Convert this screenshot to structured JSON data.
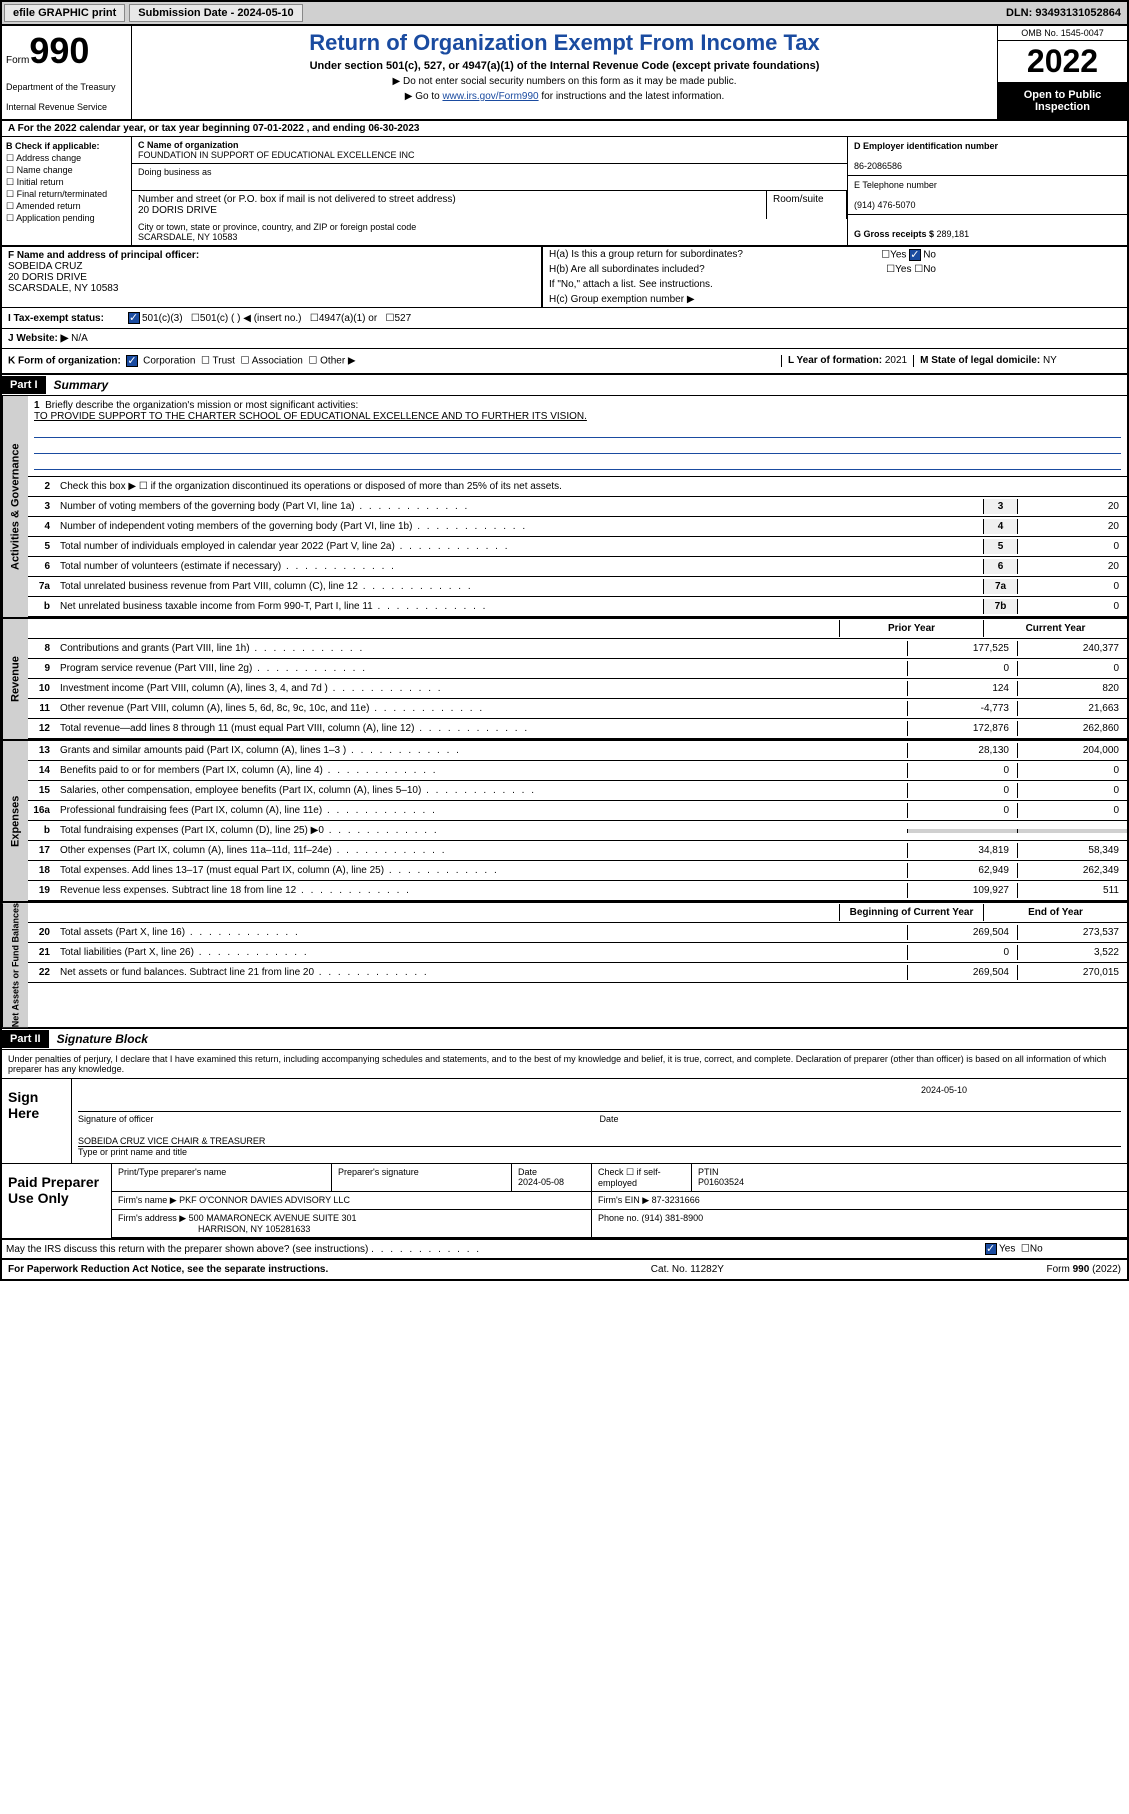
{
  "topbar": {
    "efile": "efile GRAPHIC print",
    "sub_lbl": "Submission Date - 2024-05-10",
    "dln": "DLN: 93493131052864"
  },
  "header": {
    "form_lbl": "Form",
    "form_num": "990",
    "dept": "Department of the Treasury",
    "irs": "Internal Revenue Service",
    "title": "Return of Organization Exempt From Income Tax",
    "sub": "Under section 501(c), 527, or 4947(a)(1) of the Internal Revenue Code (except private foundations)",
    "note1": "▶ Do not enter social security numbers on this form as it may be made public.",
    "note2_a": "▶ Go to ",
    "note2_link": "www.irs.gov/Form990",
    "note2_b": " for instructions and the latest information.",
    "omb": "OMB No. 1545-0047",
    "year": "2022",
    "insp": "Open to Public Inspection"
  },
  "row_a": "A For the 2022 calendar year, or tax year beginning 07-01-2022   , and ending 06-30-2023",
  "col_b": {
    "hd": "B Check if applicable:",
    "items": [
      "Address change",
      "Name change",
      "Initial return",
      "Final return/terminated",
      "Amended return",
      "Application pending"
    ]
  },
  "col_c": {
    "name_lbl": "C Name of organization",
    "name": "FOUNDATION IN SUPPORT OF EDUCATIONAL EXCELLENCE INC",
    "dba_lbl": "Doing business as",
    "addr_lbl": "Number and street (or P.O. box if mail is not delivered to street address)",
    "room_lbl": "Room/suite",
    "addr": "20 DORIS DRIVE",
    "city_lbl": "City or town, state or province, country, and ZIP or foreign postal code",
    "city": "SCARSDALE, NY  10583"
  },
  "col_d": {
    "ein_lbl": "D Employer identification number",
    "ein": "86-2086586",
    "tel_lbl": "E Telephone number",
    "tel": "(914) 476-5070",
    "gross_lbl": "G Gross receipts $ ",
    "gross": "289,181"
  },
  "row_f": {
    "lbl": "F Name and address of principal officer:",
    "name": "SOBEIDA CRUZ",
    "addr1": "20 DORIS DRIVE",
    "addr2": "SCARSDALE, NY  10583"
  },
  "col_h": {
    "a": "H(a)  Is this a group return for subordinates?",
    "b": "H(b)  Are all subordinates included?",
    "b2": "If \"No,\" attach a list. See instructions.",
    "c": "H(c)  Group exemption number ▶",
    "yes": "Yes",
    "no": "No"
  },
  "row_i": {
    "lbl": "I    Tax-exempt status:",
    "o1": "501(c)(3)",
    "o2": "501(c) (  ) ◀ (insert no.)",
    "o3": "4947(a)(1) or",
    "o4": "527"
  },
  "row_j": {
    "lbl": "J   Website: ▶",
    "val": "N/A"
  },
  "row_k": {
    "lbl": "K Form of organization:",
    "o1": "Corporation",
    "o2": "Trust",
    "o3": "Association",
    "o4": "Other ▶",
    "yr_lbl": "L Year of formation: ",
    "yr": "2021",
    "st_lbl": "M State of legal domicile: ",
    "st": "NY"
  },
  "part1": {
    "hdr": "Part I",
    "title": "Summary",
    "tab_ag": "Activities & Governance",
    "tab_rev": "Revenue",
    "tab_exp": "Expenses",
    "tab_na": "Net Assets or Fund Balances",
    "l1_lbl": "Briefly describe the organization's mission or most significant activities:",
    "l1": "TO PROVIDE SUPPORT TO THE CHARTER SCHOOL OF EDUCATIONAL EXCELLENCE AND TO FURTHER ITS VISION.",
    "l2": "Check this box ▶ ☐  if the organization discontinued its operations or disposed of more than 25% of its net assets.",
    "lines_ag": [
      {
        "n": "3",
        "t": "Number of voting members of the governing body (Part VI, line 1a)",
        "nb": "3",
        "v": "20"
      },
      {
        "n": "4",
        "t": "Number of independent voting members of the governing body (Part VI, line 1b)",
        "nb": "4",
        "v": "20"
      },
      {
        "n": "5",
        "t": "Total number of individuals employed in calendar year 2022 (Part V, line 2a)",
        "nb": "5",
        "v": "0"
      },
      {
        "n": "6",
        "t": "Total number of volunteers (estimate if necessary)",
        "nb": "6",
        "v": "20"
      },
      {
        "n": "7a",
        "t": "Total unrelated business revenue from Part VIII, column (C), line 12",
        "nb": "7a",
        "v": "0"
      },
      {
        "n": "b",
        "t": "Net unrelated business taxable income from Form 990-T, Part I, line 11",
        "nb": "7b",
        "v": "0"
      }
    ],
    "col_py": "Prior Year",
    "col_cy": "Current Year",
    "lines_rev": [
      {
        "n": "8",
        "t": "Contributions and grants (Part VIII, line 1h)",
        "py": "177,525",
        "cy": "240,377"
      },
      {
        "n": "9",
        "t": "Program service revenue (Part VIII, line 2g)",
        "py": "0",
        "cy": "0"
      },
      {
        "n": "10",
        "t": "Investment income (Part VIII, column (A), lines 3, 4, and 7d )",
        "py": "124",
        "cy": "820"
      },
      {
        "n": "11",
        "t": "Other revenue (Part VIII, column (A), lines 5, 6d, 8c, 9c, 10c, and 11e)",
        "py": "-4,773",
        "cy": "21,663"
      },
      {
        "n": "12",
        "t": "Total revenue—add lines 8 through 11 (must equal Part VIII, column (A), line 12)",
        "py": "172,876",
        "cy": "262,860"
      }
    ],
    "lines_exp": [
      {
        "n": "13",
        "t": "Grants and similar amounts paid (Part IX, column (A), lines 1–3 )",
        "py": "28,130",
        "cy": "204,000"
      },
      {
        "n": "14",
        "t": "Benefits paid to or for members (Part IX, column (A), line 4)",
        "py": "0",
        "cy": "0"
      },
      {
        "n": "15",
        "t": "Salaries, other compensation, employee benefits (Part IX, column (A), lines 5–10)",
        "py": "0",
        "cy": "0"
      },
      {
        "n": "16a",
        "t": "Professional fundraising fees (Part IX, column (A), line 11e)",
        "py": "0",
        "cy": "0"
      },
      {
        "n": "b",
        "t": "Total fundraising expenses (Part IX, column (D), line 25) ▶0",
        "py": "",
        "cy": "",
        "gray": true
      },
      {
        "n": "17",
        "t": "Other expenses (Part IX, column (A), lines 11a–11d, 11f–24e)",
        "py": "34,819",
        "cy": "58,349"
      },
      {
        "n": "18",
        "t": "Total expenses. Add lines 13–17 (must equal Part IX, column (A), line 25)",
        "py": "62,949",
        "cy": "262,349"
      },
      {
        "n": "19",
        "t": "Revenue less expenses. Subtract line 18 from line 12",
        "py": "109,927",
        "cy": "511"
      }
    ],
    "col_bcy": "Beginning of Current Year",
    "col_eoy": "End of Year",
    "lines_na": [
      {
        "n": "20",
        "t": "Total assets (Part X, line 16)",
        "py": "269,504",
        "cy": "273,537"
      },
      {
        "n": "21",
        "t": "Total liabilities (Part X, line 26)",
        "py": "0",
        "cy": "3,522"
      },
      {
        "n": "22",
        "t": "Net assets or fund balances. Subtract line 21 from line 20",
        "py": "269,504",
        "cy": "270,015"
      }
    ]
  },
  "part2": {
    "hdr": "Part II",
    "title": "Signature Block",
    "decl": "Under penalties of perjury, I declare that I have examined this return, including accompanying schedules and statements, and to the best of my knowledge and belief, it is true, correct, and complete. Declaration of preparer (other than officer) is based on all information of which preparer has any knowledge.",
    "sign_lbl": "Sign Here",
    "sig_of": "Signature of officer",
    "sig_date_lbl": "Date",
    "sig_date": "2024-05-10",
    "sig_name": "SOBEIDA CRUZ  VICE CHAIR & TREASURER",
    "sig_name_lbl": "Type or print name and title",
    "prep_lbl": "Paid Preparer Use Only",
    "pr_name_lbl": "Print/Type preparer's name",
    "pr_sig_lbl": "Preparer's signature",
    "pr_date_lbl": "Date",
    "pr_date": "2024-05-08",
    "pr_self_lbl": "Check ☐ if self-employed",
    "pr_ptin_lbl": "PTIN",
    "pr_ptin": "P01603524",
    "firm_name_lbl": "Firm's name    ▶",
    "firm_name": "PKF O'CONNOR DAVIES ADVISORY LLC",
    "firm_ein_lbl": "Firm's EIN ▶",
    "firm_ein": "87-3231666",
    "firm_addr_lbl": "Firm's address ▶",
    "firm_addr1": "500 MAMARONECK AVENUE SUITE 301",
    "firm_addr2": "HARRISON, NY 105281633",
    "firm_ph_lbl": "Phone no. ",
    "firm_ph": "(914) 381-8900",
    "discuss": "May the IRS discuss this return with the preparer shown above? (see instructions)",
    "yes": "Yes",
    "no": "No"
  },
  "footer": {
    "l": "For Paperwork Reduction Act Notice, see the separate instructions.",
    "m": "Cat. No. 11282Y",
    "r": "Form 990 (2022)"
  }
}
